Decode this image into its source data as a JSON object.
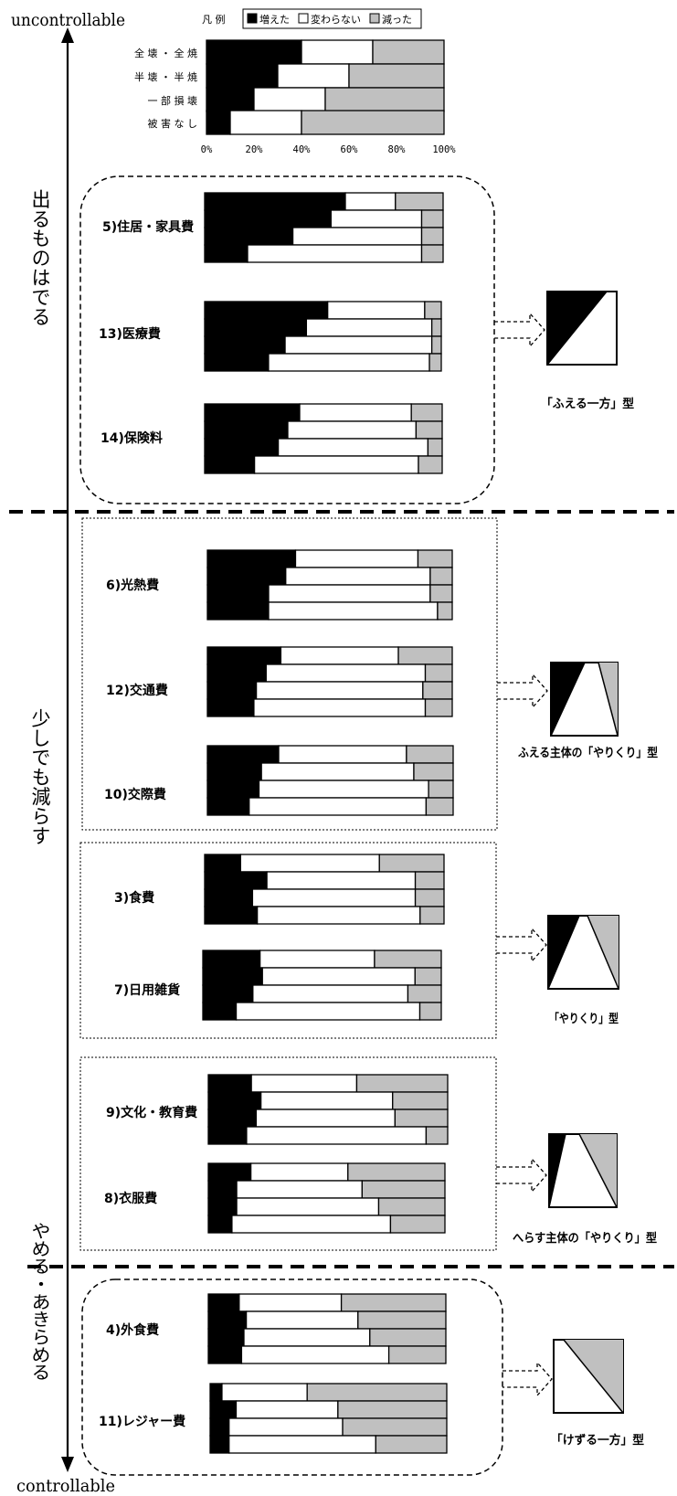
{
  "axis": {
    "top_label": "uncontrollable",
    "bottom_label": "controllable"
  },
  "zones": [
    {
      "label": "出るものはでる"
    },
    {
      "label": "少しでも減らす"
    },
    {
      "label": "やめる・あきらめる"
    }
  ],
  "legend": {
    "title": "凡 例",
    "items": [
      {
        "label": "増えた",
        "color": "#000000"
      },
      {
        "label": "変わらない",
        "color": "#ffffff"
      },
      {
        "label": "減った",
        "color": "#c0c0c0"
      }
    ]
  },
  "pattern_types": [
    {
      "label": "「ふえる一方」型"
    },
    {
      "label": "ふえる主体の「やりくり」型"
    },
    {
      "label": "「やりくり」型"
    },
    {
      "label": "へらす主体の「やりくり」型"
    },
    {
      "label": "「けずる一方」型"
    }
  ],
  "chart_data": {
    "type": "bar",
    "stacked": "percent",
    "orientation": "horizontal",
    "x_ticks": [
      "0%",
      "20%",
      "40%",
      "60%",
      "80%",
      "100%"
    ],
    "xlim": [
      0,
      100
    ],
    "series_names": [
      "増えた",
      "変わらない",
      "減った"
    ],
    "row_categories": [
      "全壊・全焼",
      "半壊・半焼",
      "一部損壊",
      "被害なし"
    ],
    "reference": {
      "categories": [
        "全 壊 ・ 全 焼",
        "半 壊 ・ 半 焼",
        "一 部 損 壊",
        "被 害 な し"
      ],
      "values": [
        [
          40,
          30,
          30
        ],
        [
          30,
          30,
          40
        ],
        [
          20,
          30,
          50
        ],
        [
          10,
          30,
          60
        ]
      ]
    },
    "items": [
      {
        "label": "5)住居・家具費",
        "values": [
          [
            59,
            21,
            20
          ],
          [
            53,
            38,
            9
          ],
          [
            37,
            54,
            9
          ],
          [
            18,
            73,
            9
          ]
        ]
      },
      {
        "label": "13)医療費",
        "values": [
          [
            52,
            41,
            7
          ],
          [
            43,
            53,
            4
          ],
          [
            34,
            62,
            4
          ],
          [
            27,
            68,
            5
          ]
        ]
      },
      {
        "label": "14)保険料",
        "values": [
          [
            40,
            47,
            13
          ],
          [
            35,
            54,
            11
          ],
          [
            31,
            63,
            6
          ],
          [
            21,
            69,
            10
          ]
        ]
      },
      {
        "label": "6)光熱費",
        "values": [
          [
            36,
            50,
            14
          ],
          [
            32,
            59,
            9
          ],
          [
            25,
            66,
            9
          ],
          [
            25,
            69,
            6
          ]
        ]
      },
      {
        "label": "12)交通費",
        "values": [
          [
            30,
            48,
            22
          ],
          [
            24,
            65,
            11
          ],
          [
            20,
            68,
            12
          ],
          [
            19,
            70,
            11
          ]
        ]
      },
      {
        "label": "10)交際費",
        "values": [
          [
            29,
            52,
            19
          ],
          [
            22,
            62,
            16
          ],
          [
            21,
            69,
            10
          ],
          [
            17,
            72,
            11
          ]
        ]
      },
      {
        "label": "3)食費",
        "values": [
          [
            15,
            58,
            27
          ],
          [
            26,
            62,
            12
          ],
          [
            20,
            68,
            12
          ],
          [
            22,
            68,
            10
          ]
        ]
      },
      {
        "label": "7)日用雑貨",
        "values": [
          [
            24,
            48,
            28
          ],
          [
            25,
            64,
            11
          ],
          [
            21,
            65,
            14
          ],
          [
            14,
            77,
            9
          ]
        ]
      },
      {
        "label": "9)文化・教育費",
        "values": [
          [
            18,
            44,
            38
          ],
          [
            22,
            55,
            23
          ],
          [
            20,
            58,
            22
          ],
          [
            16,
            75,
            9
          ]
        ]
      },
      {
        "label": "8)衣服費",
        "values": [
          [
            18,
            41,
            41
          ],
          [
            12,
            53,
            35
          ],
          [
            12,
            60,
            28
          ],
          [
            10,
            67,
            23
          ]
        ]
      },
      {
        "label": "4)外食費",
        "values": [
          [
            13,
            43,
            44
          ],
          [
            16,
            47,
            37
          ],
          [
            15,
            53,
            32
          ],
          [
            14,
            62,
            24
          ]
        ]
      },
      {
        "label": "11)レジャー費",
        "values": [
          [
            5,
            36,
            59
          ],
          [
            11,
            43,
            46
          ],
          [
            8,
            48,
            44
          ],
          [
            8,
            62,
            30
          ]
        ]
      }
    ]
  }
}
